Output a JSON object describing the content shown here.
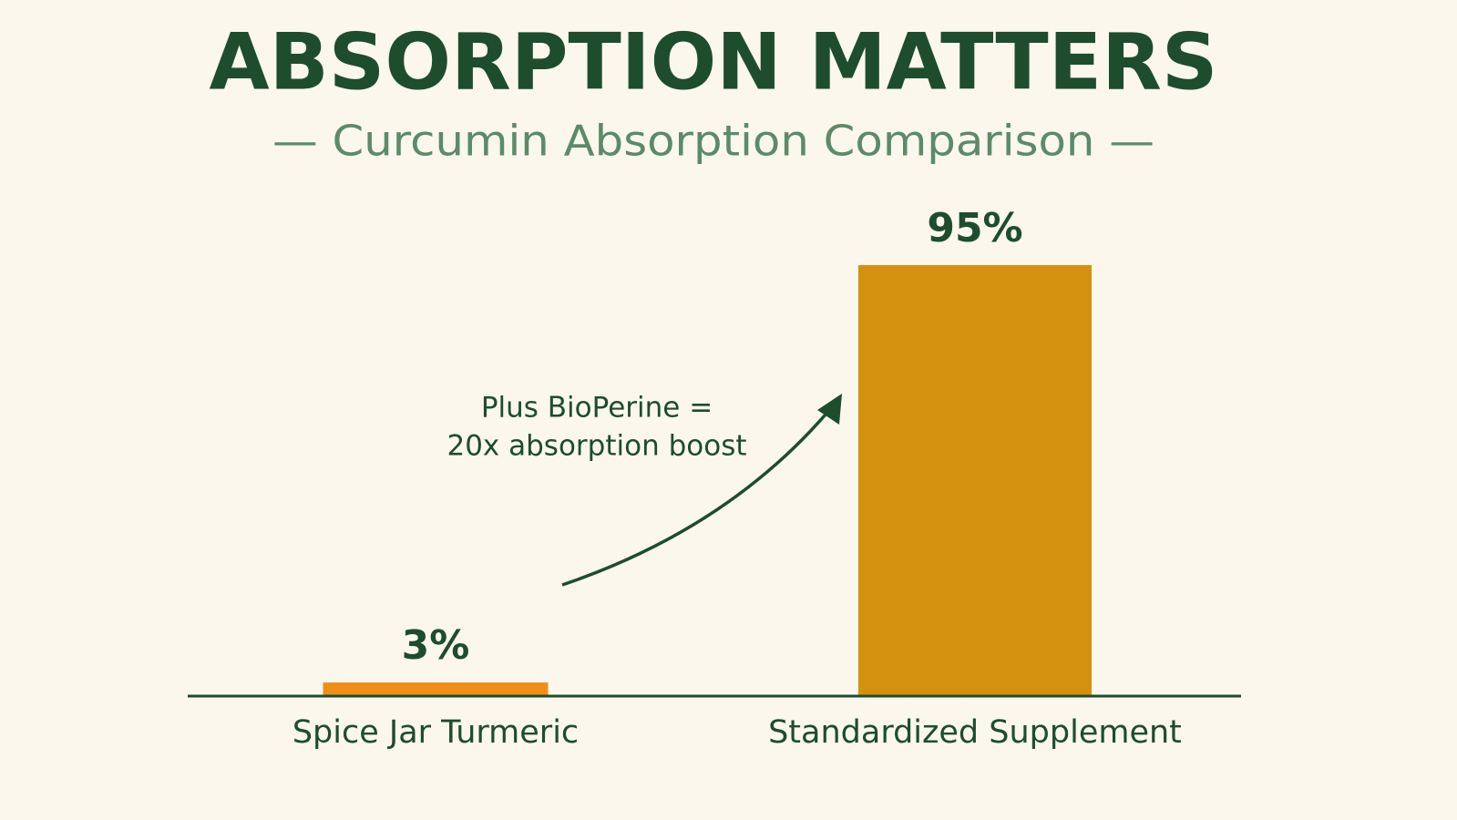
{
  "chart_data": {
    "type": "bar",
    "title": "ABSORPTION MATTERS",
    "subtitle": "— Curcumin Absorption Comparison —",
    "categories": [
      "Spice Jar Turmeric",
      "Standardized Supplement"
    ],
    "values": [
      3,
      95
    ],
    "value_labels": [
      "3%",
      "95%"
    ],
    "colors": [
      "#ef8f1a",
      "#d4900f"
    ],
    "annotation": [
      "Plus BioPerine =",
      "20x absorption boost"
    ]
  }
}
